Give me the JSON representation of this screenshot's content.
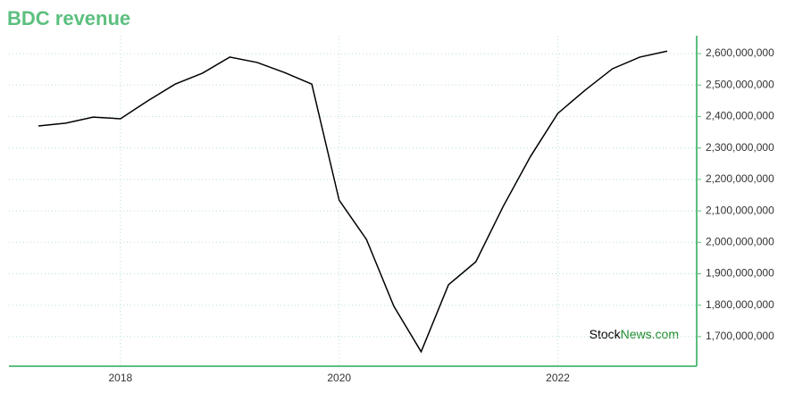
{
  "chart_data": {
    "type": "line",
    "title": "BDC revenue",
    "watermark": {
      "first": "Stock",
      "second": "News.com"
    },
    "x": [
      2017.25,
      2017.5,
      2017.75,
      2018.0,
      2018.25,
      2018.5,
      2018.75,
      2019.0,
      2019.25,
      2019.5,
      2019.75,
      2020.0,
      2020.25,
      2020.5,
      2020.75,
      2021.0,
      2021.25,
      2021.5,
      2021.75,
      2022.0,
      2022.25,
      2022.5,
      2022.75,
      2023.0
    ],
    "series": [
      {
        "name": "BDC revenue",
        "color": "#000000",
        "values": [
          2370000000,
          2379000000,
          2398000000,
          2393000000,
          2450000000,
          2503000000,
          2538000000,
          2589000000,
          2572000000,
          2540000000,
          2503000000,
          2134000000,
          2009000000,
          1797000000,
          1652000000,
          1865000000,
          1938000000,
          2114000000,
          2273000000,
          2410000000,
          2484000000,
          2552000000,
          2589000000,
          2608000000
        ]
      }
    ],
    "xlim": [
      2016.98,
      2023.27
    ],
    "ylim": [
      1606000000,
      2657000000
    ],
    "xticks": [
      2018,
      2020,
      2022
    ],
    "yticks": [
      {
        "value": 1700000000,
        "label": "1,700,000,000"
      },
      {
        "value": 1800000000,
        "label": "1,800,000,000"
      },
      {
        "value": 1900000000,
        "label": "1,900,000,000"
      },
      {
        "value": 2000000000,
        "label": "2,000,000,000"
      },
      {
        "value": 2100000000,
        "label": "2,100,000,000"
      },
      {
        "value": 2200000000,
        "label": "2,200,000,000"
      },
      {
        "value": 2300000000,
        "label": "2,300,000,000"
      },
      {
        "value": 2400000000,
        "label": "2,400,000,000"
      },
      {
        "value": 2500000000,
        "label": "2,500,000,000"
      },
      {
        "value": 2600000000,
        "label": "2,600,000,000"
      }
    ],
    "grid": true,
    "axis_color": "#5cbf7f"
  }
}
